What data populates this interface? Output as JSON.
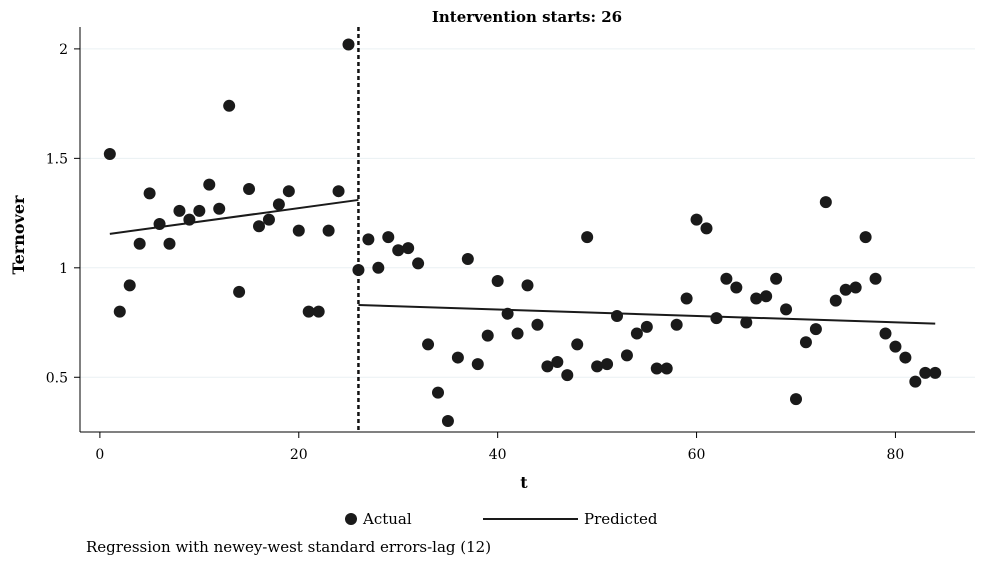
{
  "chart_data": {
    "type": "scatter",
    "title": "Intervention starts: 26",
    "xlabel": "t",
    "ylabel": "Ternover",
    "xlim": [
      -2,
      88
    ],
    "ylim": [
      0.25,
      2.1
    ],
    "xticks": [
      0,
      20,
      40,
      60,
      80
    ],
    "yticks": [
      0.5,
      1,
      1.5,
      2
    ],
    "ytick_labels": [
      "0.5",
      "1",
      "1.5",
      "2"
    ],
    "grid": "horizontal",
    "intervention_x": 26,
    "legend": {
      "placement": "bottom",
      "actual_label": "Actual",
      "predicted_label": "Predicted"
    },
    "note": "Regression with newey-west standard errors-lag (12)",
    "series": [
      {
        "name": "Actual",
        "kind": "points",
        "x": [
          1,
          2,
          3,
          4,
          5,
          6,
          7,
          8,
          9,
          10,
          11,
          12,
          13,
          14,
          15,
          16,
          17,
          18,
          19,
          20,
          21,
          22,
          23,
          24,
          25,
          26,
          27,
          28,
          29,
          30,
          31,
          32,
          33,
          34,
          35,
          36,
          37,
          38,
          39,
          40,
          41,
          42,
          43,
          44,
          45,
          46,
          47,
          48,
          49,
          50,
          51,
          52,
          53,
          54,
          55,
          56,
          57,
          58,
          59,
          60,
          61,
          62,
          63,
          64,
          65,
          66,
          67,
          68,
          69,
          70,
          71,
          72,
          73,
          74,
          75,
          76,
          77,
          78,
          79,
          80,
          81,
          82,
          83,
          84
        ],
        "y": [
          1.52,
          0.8,
          0.92,
          1.11,
          1.34,
          1.2,
          1.11,
          1.26,
          1.22,
          1.26,
          1.38,
          1.27,
          1.74,
          0.89,
          1.36,
          1.19,
          1.22,
          1.29,
          1.35,
          1.17,
          0.8,
          0.8,
          1.17,
          1.35,
          2.02,
          0.99,
          1.13,
          1.0,
          1.14,
          1.08,
          1.09,
          1.02,
          0.65,
          0.43,
          0.3,
          0.59,
          1.04,
          0.56,
          0.69,
          0.94,
          0.79,
          0.7,
          0.92,
          0.74,
          0.55,
          0.57,
          0.51,
          0.65,
          1.14,
          0.55,
          0.56,
          0.78,
          0.6,
          0.7,
          0.73,
          0.54,
          0.54,
          0.74,
          0.86,
          1.22,
          1.18,
          0.77,
          0.95,
          0.91,
          0.75,
          0.86,
          0.87,
          0.95,
          0.81,
          0.4,
          0.66,
          0.72,
          1.3,
          0.85,
          0.9,
          0.91,
          1.14,
          0.95,
          0.7,
          0.64,
          0.59,
          0.48,
          0.52,
          0.52
        ]
      },
      {
        "name": "Predicted",
        "kind": "segments",
        "segments": [
          {
            "x": [
              1,
              26
            ],
            "y": [
              1.155,
              1.31
            ]
          },
          {
            "x": [
              26,
              84
            ],
            "y": [
              0.83,
              0.745
            ]
          }
        ]
      }
    ]
  }
}
